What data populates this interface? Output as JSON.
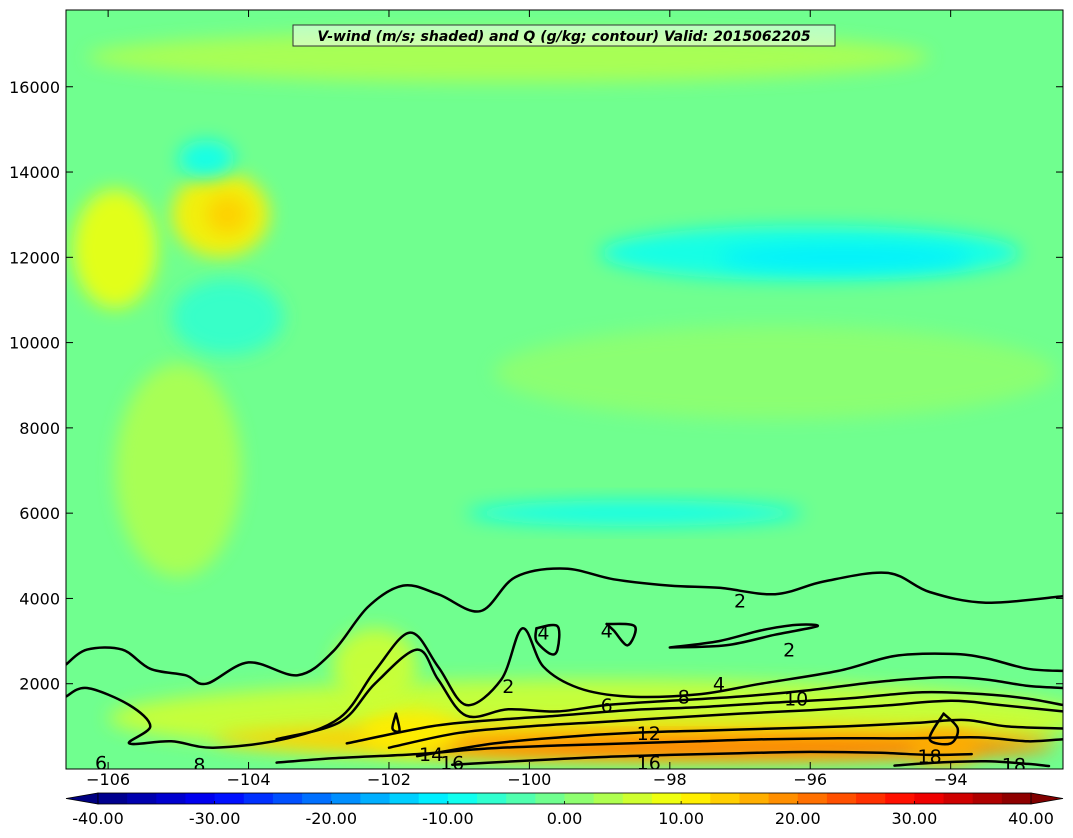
{
  "chart_data": {
    "type": "heatmap",
    "title": "V-wind (m/s; shaded) and Q (g/kg; contour) Valid: 2015062205",
    "xlabel": "",
    "ylabel": "",
    "xlim": [
      -106.6,
      -92.4
    ],
    "ylim": [
      0,
      17800
    ],
    "x_ticks": [
      -106,
      -104,
      -102,
      -100,
      -98,
      -96,
      -94
    ],
    "x_tick_labels": [
      "−106",
      "−104",
      "−102",
      "−100",
      "−98",
      "−96",
      "−94"
    ],
    "y_ticks": [
      2000,
      4000,
      6000,
      8000,
      10000,
      12000,
      14000,
      16000
    ],
    "y_tick_labels": [
      "2000",
      "4000",
      "6000",
      "8000",
      "10000",
      "12000",
      "14000",
      "16000"
    ],
    "background_value": -2,
    "shaded_regions": [
      {
        "x": -105.9,
        "y": 12200,
        "rx": 0.6,
        "ry": 1400,
        "value": 8
      },
      {
        "x": -104.4,
        "y": 13000,
        "rx": 0.7,
        "ry": 1000,
        "value": 10
      },
      {
        "x": -104.3,
        "y": 13000,
        "rx": 0.3,
        "ry": 450,
        "value": 14
      },
      {
        "x": -105.0,
        "y": 7000,
        "rx": 0.9,
        "ry": 2500,
        "value": 4
      },
      {
        "x": -96.0,
        "y": 12100,
        "rx": 3.0,
        "ry": 650,
        "value": -8
      },
      {
        "x": -95.5,
        "y": 12000,
        "rx": 1.8,
        "ry": 280,
        "value": -12
      },
      {
        "x": -104.6,
        "y": 14300,
        "rx": 0.4,
        "ry": 450,
        "value": -8
      },
      {
        "x": -98.5,
        "y": 6000,
        "rx": 2.4,
        "ry": 300,
        "value": -8
      },
      {
        "x": -104.3,
        "y": 10600,
        "rx": 0.8,
        "ry": 900,
        "value": -6
      },
      {
        "x": -96.5,
        "y": 9300,
        "rx": 4.0,
        "ry": 1100,
        "value": 1
      },
      {
        "x": -100.3,
        "y": 16700,
        "rx": 6.0,
        "ry": 600,
        "value": 4
      },
      {
        "x": -99.0,
        "y": 1200,
        "rx": 7.0,
        "ry": 900,
        "value": 6
      },
      {
        "x": -98.5,
        "y": 700,
        "rx": 6.0,
        "ry": 420,
        "value": 14
      },
      {
        "x": -97.0,
        "y": 500,
        "rx": 4.5,
        "ry": 250,
        "value": 20
      },
      {
        "x": -101.7,
        "y": 900,
        "rx": 0.7,
        "ry": 500,
        "value": 12
      },
      {
        "x": -102.2,
        "y": 2400,
        "rx": 0.6,
        "ry": 900,
        "value": 6
      },
      {
        "x": -94.1,
        "y": 500,
        "rx": 0.5,
        "ry": 400,
        "value": 16
      }
    ],
    "contours": [
      {
        "level": 2,
        "points": [
          [
            -106.6,
            2450
          ],
          [
            -106.3,
            2800
          ],
          [
            -105.8,
            2800
          ],
          [
            -105.4,
            2350
          ],
          [
            -104.9,
            2200
          ],
          [
            -104.6,
            2000
          ],
          [
            -104.0,
            2500
          ],
          [
            -103.3,
            2200
          ],
          [
            -102.8,
            2750
          ],
          [
            -102.3,
            3800
          ],
          [
            -101.8,
            4300
          ],
          [
            -101.3,
            4100
          ],
          [
            -100.7,
            3700
          ],
          [
            -100.2,
            4500
          ],
          [
            -99.5,
            4700
          ],
          [
            -98.8,
            4450
          ],
          [
            -98.0,
            4300
          ],
          [
            -97.3,
            4250
          ],
          [
            -96.5,
            4100
          ],
          [
            -95.8,
            4400
          ],
          [
            -94.9,
            4600
          ],
          [
            -94.3,
            4150
          ],
          [
            -93.5,
            3900
          ],
          [
            -92.4,
            4050
          ]
        ]
      },
      {
        "level": 4,
        "points": [
          [
            -106.6,
            1700
          ],
          [
            -106.3,
            1900
          ],
          [
            -105.7,
            1500
          ],
          [
            -105.4,
            1000
          ],
          [
            -105.7,
            600
          ],
          [
            -105.1,
            650
          ],
          [
            -104.5,
            500
          ],
          [
            -103.5,
            700
          ],
          [
            -102.7,
            1200
          ],
          [
            -102.2,
            2300
          ],
          [
            -101.7,
            3200
          ],
          [
            -101.3,
            2400
          ],
          [
            -100.9,
            1500
          ],
          [
            -100.4,
            2100
          ],
          [
            -100.1,
            3300
          ],
          [
            -99.8,
            2400
          ],
          [
            -99.3,
            1900
          ],
          [
            -98.6,
            1700
          ],
          [
            -97.6,
            1750
          ],
          [
            -96.7,
            2000
          ],
          [
            -95.6,
            2300
          ],
          [
            -94.8,
            2650
          ],
          [
            -94.0,
            2700
          ],
          [
            -93.5,
            2600
          ],
          [
            -92.9,
            2350
          ],
          [
            -92.4,
            2300
          ]
        ]
      },
      {
        "level": 6,
        "points": [
          [
            -103.6,
            700
          ],
          [
            -102.7,
            1100
          ],
          [
            -102.2,
            2000
          ],
          [
            -101.6,
            2800
          ],
          [
            -101.3,
            2100
          ],
          [
            -100.9,
            1250
          ],
          [
            -100.3,
            1400
          ],
          [
            -99.6,
            1350
          ],
          [
            -98.9,
            1500
          ],
          [
            -98.0,
            1600
          ],
          [
            -97.0,
            1700
          ],
          [
            -96.0,
            1850
          ],
          [
            -95.0,
            2050
          ],
          [
            -94.1,
            2150
          ],
          [
            -93.5,
            2100
          ],
          [
            -92.9,
            1950
          ],
          [
            -92.4,
            1900
          ]
        ]
      },
      {
        "level": 8,
        "points": [
          [
            -102.6,
            600
          ],
          [
            -101.4,
            1000
          ],
          [
            -100.5,
            1150
          ],
          [
            -99.6,
            1250
          ],
          [
            -98.6,
            1380
          ],
          [
            -97.6,
            1450
          ],
          [
            -96.6,
            1550
          ],
          [
            -95.5,
            1650
          ],
          [
            -94.4,
            1800
          ],
          [
            -93.5,
            1750
          ],
          [
            -92.9,
            1650
          ],
          [
            -92.4,
            1500
          ]
        ]
      },
      {
        "level": 10,
        "points": [
          [
            -102.0,
            500
          ],
          [
            -101.0,
            850
          ],
          [
            -100.0,
            1000
          ],
          [
            -99.0,
            1100
          ],
          [
            -98.0,
            1200
          ],
          [
            -97.0,
            1300
          ],
          [
            -96.0,
            1380
          ],
          [
            -95.0,
            1480
          ],
          [
            -94.0,
            1600
          ],
          [
            -93.3,
            1500
          ],
          [
            -92.4,
            1350
          ]
        ]
      },
      {
        "level": 12,
        "points": [
          [
            -101.6,
            300
          ],
          [
            -100.5,
            600
          ],
          [
            -99.5,
            750
          ],
          [
            -98.5,
            850
          ],
          [
            -97.5,
            900
          ],
          [
            -96.5,
            950
          ],
          [
            -95.5,
            1000
          ],
          [
            -94.5,
            1080
          ],
          [
            -93.8,
            1150
          ],
          [
            -93.2,
            1000
          ],
          [
            -92.4,
            950
          ]
        ]
      },
      {
        "level": 14,
        "points": [
          [
            -103.6,
            150
          ],
          [
            -102.8,
            250
          ],
          [
            -101.6,
            350
          ],
          [
            -100.6,
            480
          ],
          [
            -99.6,
            550
          ],
          [
            -98.6,
            600
          ],
          [
            -97.6,
            650
          ],
          [
            -96.6,
            700
          ],
          [
            -95.6,
            720
          ],
          [
            -94.6,
            720
          ],
          [
            -93.6,
            740
          ],
          [
            -92.9,
            650
          ],
          [
            -92.4,
            700
          ]
        ]
      },
      {
        "level": 16,
        "points": [
          [
            -101.1,
            100
          ],
          [
            -100.0,
            200
          ],
          [
            -99.0,
            280
          ],
          [
            -98.0,
            330
          ],
          [
            -97.0,
            370
          ],
          [
            -96.0,
            400
          ],
          [
            -95.0,
            380
          ],
          [
            -94.3,
            330
          ],
          [
            -93.7,
            350
          ]
        ]
      },
      {
        "level": 18,
        "points": [
          [
            -94.8,
            80
          ],
          [
            -94.2,
            150
          ],
          [
            -93.5,
            180
          ],
          [
            -92.9,
            120
          ],
          [
            -92.6,
            70
          ]
        ]
      },
      {
        "level": 4,
        "points": [
          [
            -99.9,
            3300
          ],
          [
            -99.6,
            3350
          ],
          [
            -99.6,
            2800
          ],
          [
            -99.7,
            2700
          ],
          [
            -99.9,
            3000
          ],
          [
            -99.9,
            3300
          ]
        ]
      },
      {
        "level": 4,
        "points": [
          [
            -98.9,
            3400
          ],
          [
            -98.5,
            3350
          ],
          [
            -98.6,
            2900
          ],
          [
            -98.8,
            3250
          ],
          [
            -98.9,
            3400
          ]
        ]
      },
      {
        "level": 12,
        "points": [
          [
            -101.9,
            1300
          ],
          [
            -101.85,
            900
          ],
          [
            -101.95,
            950
          ],
          [
            -101.9,
            1300
          ]
        ]
      },
      {
        "level": 12,
        "points": [
          [
            -94.1,
            1300
          ],
          [
            -93.9,
            950
          ],
          [
            -94.0,
            600
          ],
          [
            -94.3,
            700
          ],
          [
            -94.1,
            1300
          ]
        ]
      },
      {
        "level": 4,
        "points": [
          [
            -98.0,
            2850
          ],
          [
            -97.3,
            3000
          ],
          [
            -96.7,
            3250
          ],
          [
            -96.2,
            3380
          ],
          [
            -95.9,
            3350
          ],
          [
            -96.5,
            3150
          ],
          [
            -97.2,
            2900
          ],
          [
            -98.0,
            2850
          ]
        ]
      }
    ],
    "contour_labels": [
      {
        "text": "2",
        "x": -97.0,
        "y": 3950
      },
      {
        "text": "2",
        "x": -96.3,
        "y": 2800
      },
      {
        "text": "2",
        "x": -100.3,
        "y": 1950
      },
      {
        "text": "4",
        "x": -99.8,
        "y": 3200
      },
      {
        "text": "4",
        "x": -98.9,
        "y": 3250
      },
      {
        "text": "4",
        "x": -97.3,
        "y": 2000
      },
      {
        "text": "6",
        "x": -106.1,
        "y": 150
      },
      {
        "text": "6",
        "x": -98.9,
        "y": 1500
      },
      {
        "text": "8",
        "x": -104.7,
        "y": 100
      },
      {
        "text": "8",
        "x": -97.8,
        "y": 1700
      },
      {
        "text": "10",
        "x": -96.2,
        "y": 1650
      },
      {
        "text": "12",
        "x": -98.3,
        "y": 850
      },
      {
        "text": "14",
        "x": -101.4,
        "y": 350
      },
      {
        "text": "16",
        "x": -101.1,
        "y": 150
      },
      {
        "text": "16",
        "x": -98.3,
        "y": 150
      },
      {
        "text": "18",
        "x": -94.3,
        "y": 300
      },
      {
        "text": "18",
        "x": -93.1,
        "y": 100
      }
    ],
    "colorbar": {
      "min": -40,
      "max": 40,
      "step": 2.5,
      "extend": "both",
      "tick_labels": [
        "-40.00",
        "-30.00",
        "-20.00",
        "-10.00",
        "0.00",
        "10.00",
        "20.00",
        "30.00",
        "40.00"
      ]
    },
    "colormap": "jet",
    "contour_color": "#000000"
  }
}
